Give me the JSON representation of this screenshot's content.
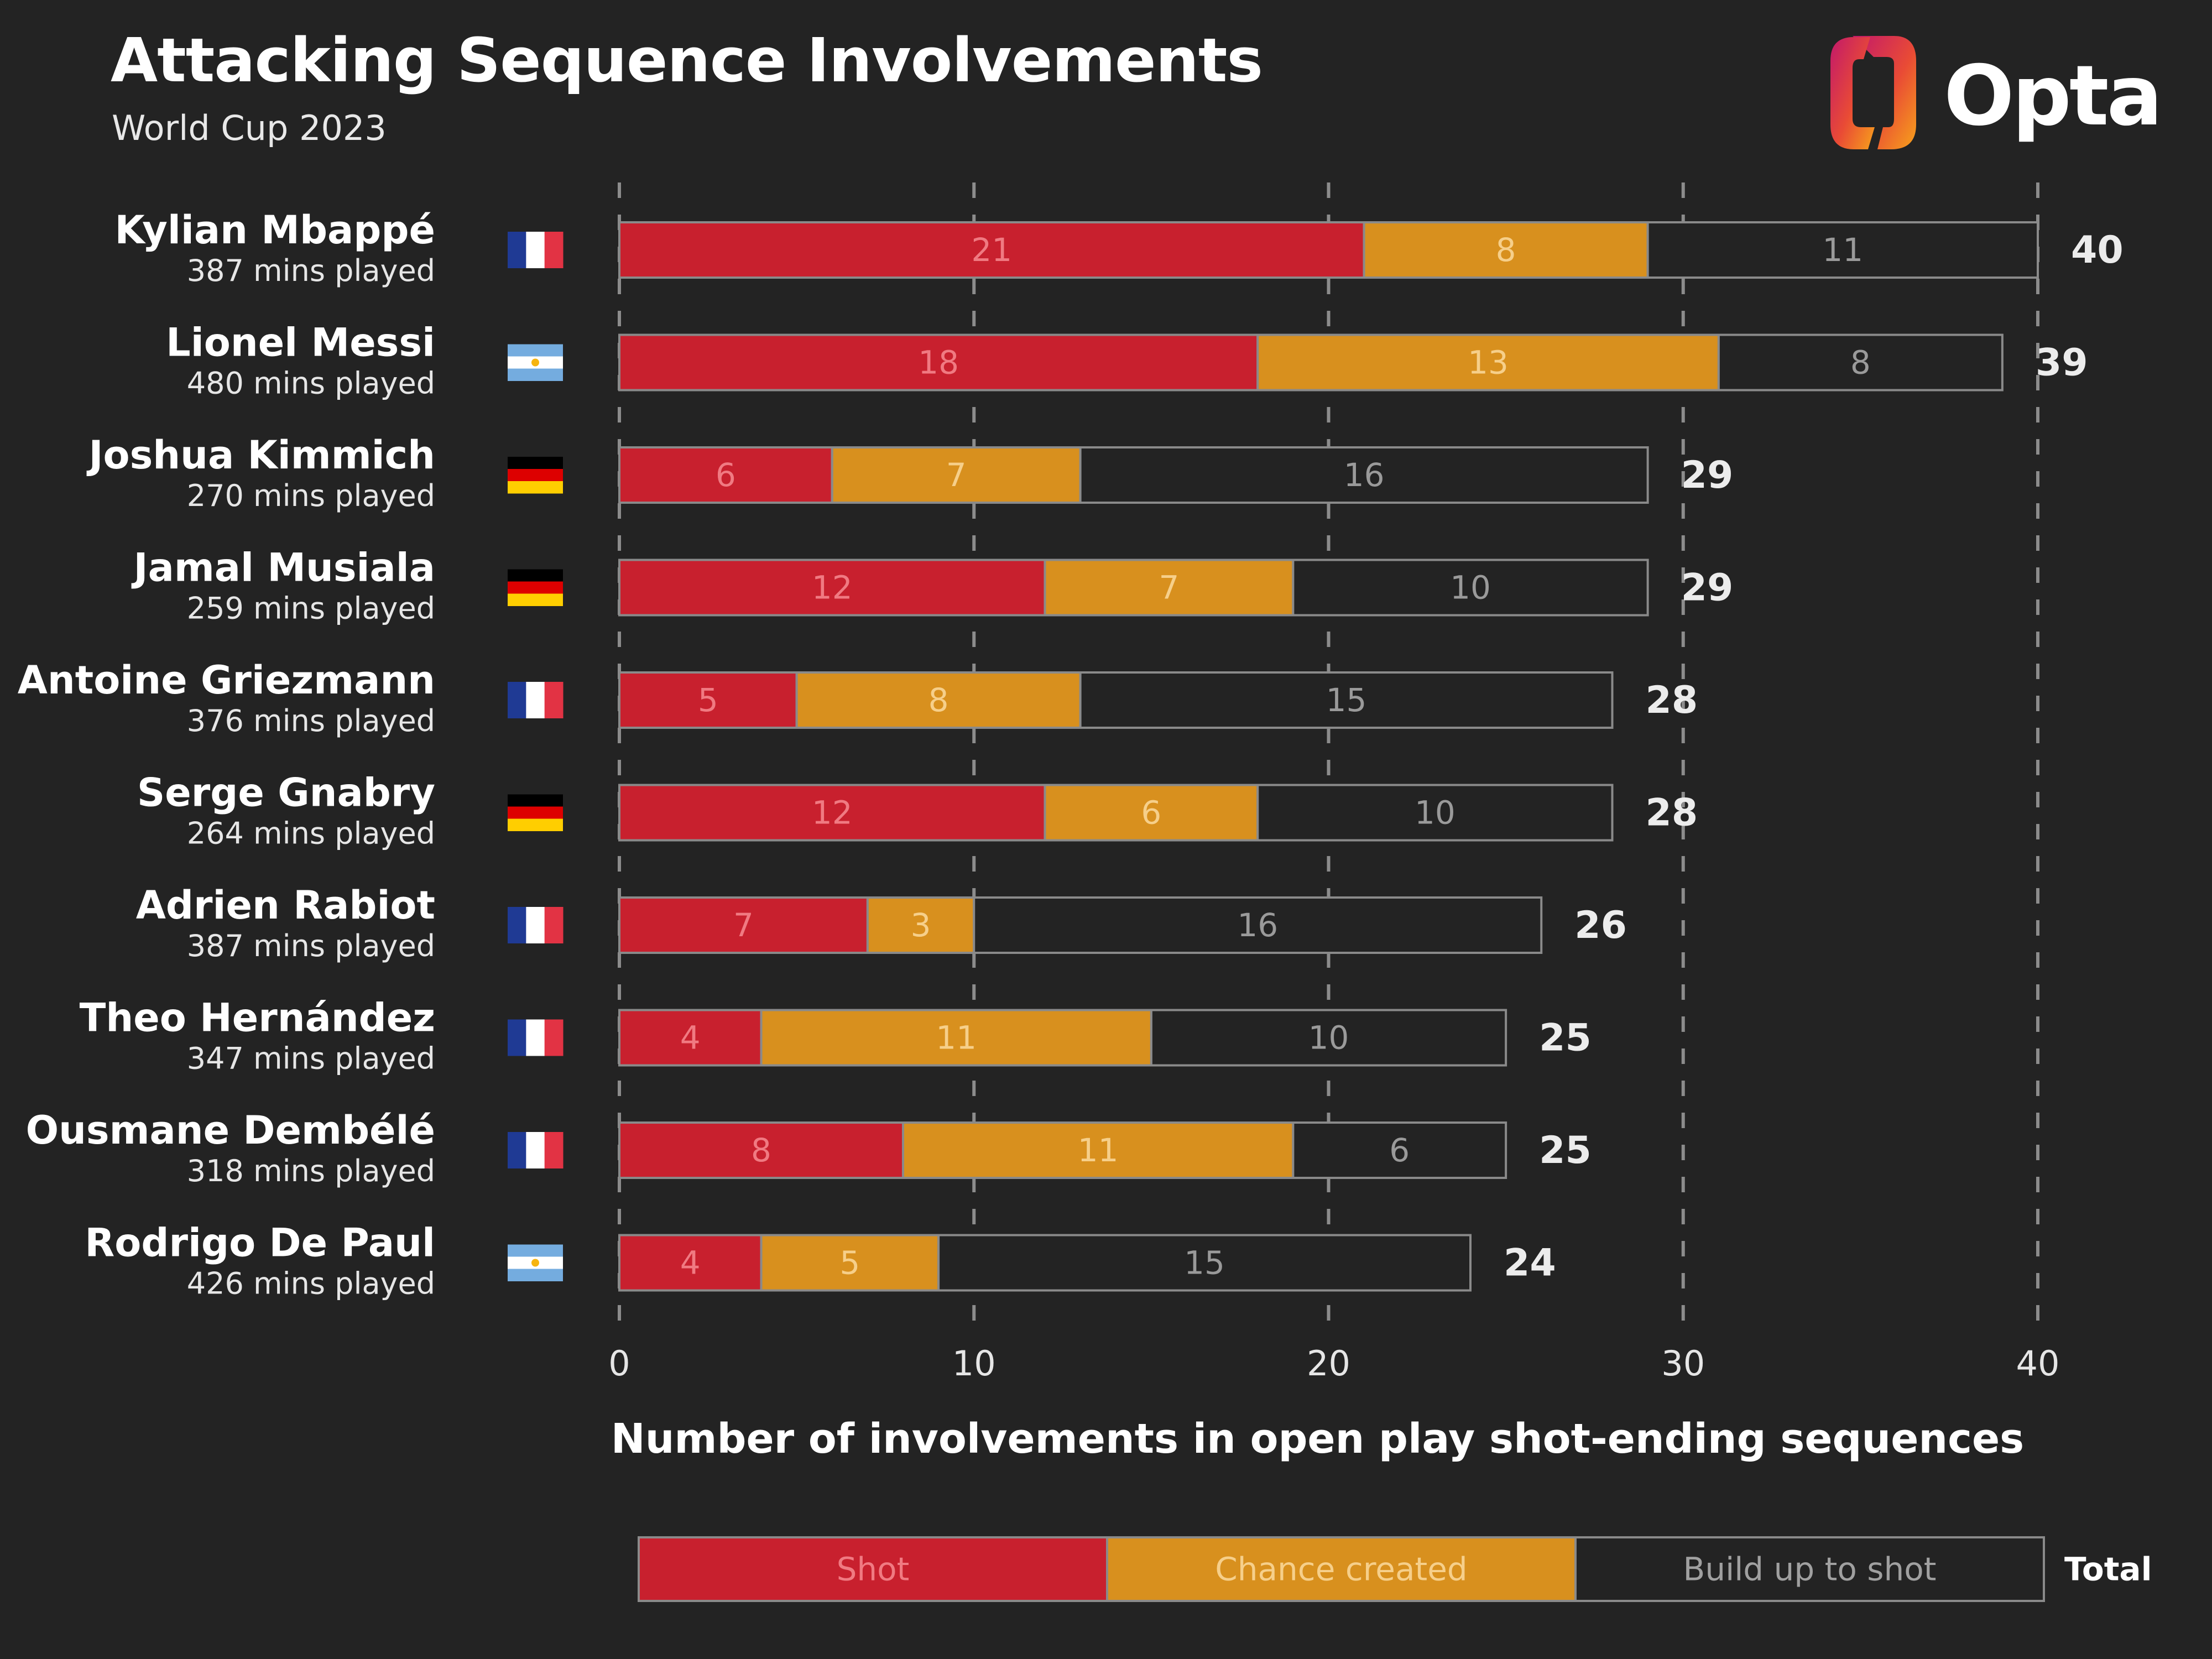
{
  "header": {
    "title": "Attacking Sequence Involvements",
    "subtitle": "World Cup 2023",
    "brand": "Opta"
  },
  "flags": {
    "France": [
      "#1f3a94",
      "#ffffff",
      "#e23344"
    ],
    "Argentina": [
      "#74acdf",
      "#ffffff",
      "#74acdf"
    ],
    "Germany": [
      "#000000",
      "#dd0000",
      "#ffce00"
    ]
  },
  "colors": {
    "background": "#232323",
    "shot": "#c8202e",
    "chance": "#d8901e",
    "buildup": "#232323",
    "outline": "#8a8a8a",
    "grid": "#8c8c8c"
  },
  "chart_data": {
    "type": "bar",
    "orientation": "horizontal",
    "stacked": true,
    "title": "Attacking Sequence Involvements",
    "subtitle": "World Cup 2023",
    "xlabel": "Number of involvements in open play shot-ending sequences",
    "ylabel": "",
    "xlim": [
      0,
      40
    ],
    "xticks": [
      0,
      10,
      20,
      30,
      40
    ],
    "grid": "vertical dashed",
    "players": [
      {
        "name": "Kylian Mbappé",
        "minutes": "387 mins played",
        "country": "France",
        "total": 40
      },
      {
        "name": "Lionel Messi",
        "minutes": "480 mins played",
        "country": "Argentina",
        "total": 39
      },
      {
        "name": "Joshua Kimmich",
        "minutes": "270 mins played",
        "country": "Germany",
        "total": 29
      },
      {
        "name": "Jamal Musiala",
        "minutes": "259 mins played",
        "country": "Germany",
        "total": 29
      },
      {
        "name": "Antoine Griezmann",
        "minutes": "376 mins played",
        "country": "France",
        "total": 28
      },
      {
        "name": "Serge Gnabry",
        "minutes": "264 mins played",
        "country": "Germany",
        "total": 28
      },
      {
        "name": "Adrien Rabiot",
        "minutes": "387 mins played",
        "country": "France",
        "total": 26
      },
      {
        "name": "Theo Hernández",
        "minutes": "347 mins played",
        "country": "France",
        "total": 25
      },
      {
        "name": "Ousmane Dembélé",
        "minutes": "318 mins played",
        "country": "France",
        "total": 25
      },
      {
        "name": "Rodrigo De Paul",
        "minutes": "426 mins played",
        "country": "Argentina",
        "total": 24
      }
    ],
    "series": [
      {
        "name": "Shot",
        "key": "shot",
        "values": [
          21,
          18,
          6,
          12,
          5,
          12,
          7,
          4,
          8,
          4
        ]
      },
      {
        "name": "Chance created",
        "key": "chance",
        "values": [
          8,
          13,
          7,
          7,
          8,
          6,
          3,
          11,
          11,
          5
        ]
      },
      {
        "name": "Build up to shot",
        "key": "buildup",
        "values": [
          11,
          8,
          16,
          10,
          15,
          10,
          16,
          10,
          6,
          15
        ]
      }
    ],
    "legend": {
      "items": [
        "Shot",
        "Chance created",
        "Build up to shot"
      ],
      "total_label": "Total",
      "position": "bottom"
    }
  }
}
